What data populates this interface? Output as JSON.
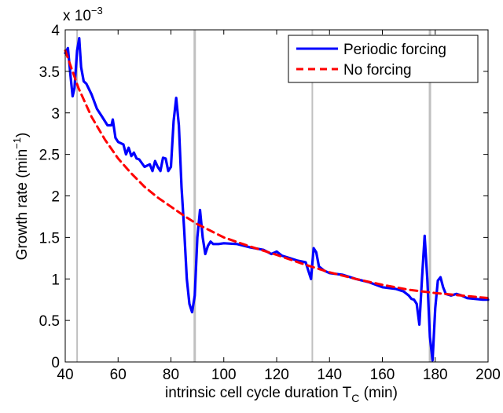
{
  "chart_data": {
    "type": "line",
    "xlabel": "intrinsic cell cycle duration T",
    "xlabel_subscript": "C",
    "xlabel_suffix": " (min)",
    "ylabel": "Growth rate (min",
    "ylabel_superscript": "−1",
    "ylabel_suffix": ")",
    "y_multiplier_base": "x 10",
    "y_multiplier_exponent": "−3",
    "xlim": [
      40,
      200
    ],
    "ylim": [
      0,
      4
    ],
    "x_ticks": [
      40,
      60,
      80,
      100,
      120,
      140,
      160,
      180,
      200
    ],
    "y_ticks": [
      0,
      0.5,
      1,
      1.5,
      2,
      2.5,
      3,
      3.5,
      4
    ],
    "y_tick_labels": [
      "0",
      "0.5",
      "1",
      "1.5",
      "2",
      "2.5",
      "3",
      "3.5",
      "4"
    ],
    "grid": false,
    "legend_position": "top-right",
    "vertical_lines": [
      44.5,
      89,
      133.5,
      178
    ],
    "colors": {
      "periodic": "#0000ff",
      "no_forcing": "#ff0000",
      "vlines": "#c0c0c0"
    },
    "series": [
      {
        "name": "Periodic forcing",
        "style": "solid",
        "x": [
          40,
          41,
          42,
          42.8,
          43.5,
          44.5,
          45.3,
          46,
          47,
          48,
          50,
          52,
          54,
          56,
          57.5,
          58,
          59,
          60,
          62,
          63,
          64,
          65,
          66,
          67,
          68,
          70,
          72,
          73,
          74,
          75,
          76,
          77,
          78,
          79,
          80,
          81,
          82,
          83,
          84,
          85,
          86,
          87,
          88,
          89,
          90,
          91,
          92,
          93,
          94,
          95,
          96,
          98,
          100,
          105,
          110,
          115,
          118,
          120,
          122,
          125,
          128,
          131,
          132,
          133,
          134,
          135,
          136,
          138,
          140,
          145,
          150,
          155,
          160,
          165,
          168,
          170,
          171,
          172,
          173,
          174,
          175,
          176,
          177,
          178,
          179,
          180,
          181,
          182,
          183,
          184,
          186,
          188,
          190,
          192,
          195,
          198,
          200
        ],
        "y": [
          3.72,
          3.78,
          3.45,
          3.2,
          3.3,
          3.75,
          3.9,
          3.55,
          3.38,
          3.35,
          3.22,
          3.05,
          2.95,
          2.85,
          2.85,
          2.92,
          2.7,
          2.65,
          2.62,
          2.5,
          2.58,
          2.48,
          2.52,
          2.45,
          2.44,
          2.35,
          2.38,
          2.3,
          2.42,
          2.35,
          2.3,
          2.46,
          2.45,
          2.3,
          2.35,
          2.9,
          3.18,
          2.85,
          2.1,
          1.6,
          1.0,
          0.7,
          0.6,
          0.8,
          1.5,
          1.83,
          1.5,
          1.3,
          1.4,
          1.45,
          1.42,
          1.42,
          1.43,
          1.42,
          1.38,
          1.35,
          1.3,
          1.33,
          1.28,
          1.25,
          1.22,
          1.2,
          1.1,
          1.0,
          1.37,
          1.32,
          1.15,
          1.1,
          1.07,
          1.05,
          1.0,
          0.96,
          0.9,
          0.88,
          0.85,
          0.8,
          0.76,
          0.75,
          0.7,
          0.45,
          1.0,
          1.52,
          1.0,
          0.3,
          0.02,
          0.65,
          0.98,
          1.02,
          0.9,
          0.82,
          0.8,
          0.82,
          0.8,
          0.77,
          0.76,
          0.75,
          0.75
        ]
      },
      {
        "name": "No forcing",
        "style": "dashed",
        "x": [
          40,
          45,
          50,
          55,
          60,
          65,
          70,
          75,
          80,
          85,
          90,
          95,
          100,
          110,
          120,
          130,
          140,
          150,
          160,
          170,
          180,
          190,
          200
        ],
        "y": [
          3.75,
          3.3,
          2.95,
          2.68,
          2.45,
          2.27,
          2.11,
          1.98,
          1.87,
          1.76,
          1.66,
          1.58,
          1.5,
          1.39,
          1.29,
          1.18,
          1.08,
          1.0,
          0.93,
          0.87,
          0.83,
          0.8,
          0.77
        ]
      }
    ]
  }
}
